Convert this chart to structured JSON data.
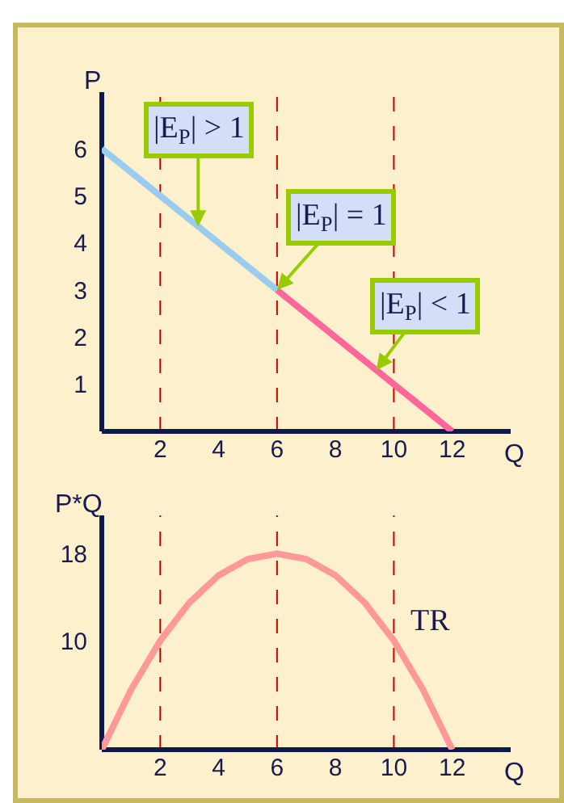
{
  "chart_data": [
    {
      "type": "line",
      "xlabel": "Q",
      "ylabel": "P",
      "xlim": [
        0,
        14
      ],
      "ylim": [
        0,
        7.2
      ],
      "xticks": [
        2,
        4,
        6,
        8,
        10,
        12
      ],
      "yticks": [
        1,
        2,
        3,
        4,
        5,
        6
      ],
      "grid": false,
      "legend": false,
      "marker": "none",
      "line_style": "solid",
      "series": [
        {
          "x": [
            0,
            6
          ],
          "values": [
            6,
            3
          ],
          "color": "#99ccee"
        },
        {
          "x": [
            6,
            12
          ],
          "values": [
            3,
            0
          ],
          "color": "#ff6699"
        }
      ],
      "ref_lines": [
        {
          "axis": "x",
          "value": 2,
          "color": "#cc0000",
          "line_style": "dashed"
        },
        {
          "axis": "x",
          "value": 6,
          "color": "#cc0000",
          "line_style": "dashed"
        },
        {
          "axis": "x",
          "value": 10,
          "color": "#cc0000",
          "line_style": "dashed"
        }
      ],
      "annotations": [
        {
          "text": "|E$_{P}$| > 1",
          "x": 3.3,
          "y": 4.35
        },
        {
          "text": "|E$_{P}$| = 1",
          "x": 6,
          "y": 3
        },
        {
          "text": "|E$_{P}$| < 1",
          "x": 9.4,
          "y": 1.3
        }
      ]
    },
    {
      "type": "line",
      "xlabel": "Q",
      "ylabel": "P*Q",
      "xlim": [
        0,
        14
      ],
      "ylim": [
        0,
        21.5
      ],
      "xticks": [
        2,
        4,
        6,
        8,
        10,
        12
      ],
      "yticks": [
        10,
        18
      ],
      "grid": false,
      "legend": false,
      "marker": "none",
      "line_style": "solid",
      "series": [
        {
          "name": "TR",
          "x": [
            0,
            1,
            2,
            3,
            4,
            5,
            6,
            7,
            8,
            9,
            10,
            11,
            12
          ],
          "values": [
            0,
            5.5,
            10,
            13.5,
            16,
            17.5,
            18,
            17.5,
            16,
            13.5,
            10,
            5.5,
            0
          ],
          "color": "#ff9999"
        }
      ],
      "ref_lines": [
        {
          "axis": "x",
          "value": 2,
          "color": "#cc0000",
          "line_style": "dashed"
        },
        {
          "axis": "x",
          "value": 6,
          "color": "#cc0000",
          "line_style": "dashed"
        },
        {
          "axis": "x",
          "value": 10,
          "color": "#cc0000",
          "line_style": "dashed"
        }
      ]
    }
  ]
}
